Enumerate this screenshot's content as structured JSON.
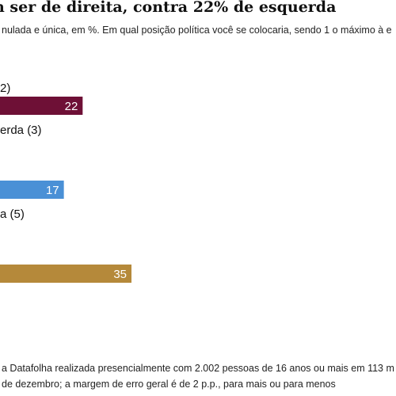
{
  "header": {
    "title": "n ser de direita, contra 22% de esquerda",
    "subtitle": "nulada e única, em %. Em qual posição política você se colocaria, sendo 1 o máximo à e"
  },
  "colors": {
    "esquerda": "#6e1036",
    "centro": "#4a90d6",
    "direita": "#b5893a"
  },
  "chart_data": {
    "type": "bar",
    "orientation": "horizontal",
    "groups": [
      {
        "label": "2)",
        "value": 22,
        "color": "#6e1036"
      },
      {
        "label": "erda (3)",
        "value": null,
        "color": null
      },
      {
        "label": "",
        "value": 17,
        "color": "#4a90d6"
      },
      {
        "label": "a (5)",
        "value": null,
        "color": null
      },
      {
        "label": "",
        "value": 35,
        "color": "#b5893a"
      }
    ]
  },
  "source": {
    "line1": "a Datafolha realizada presencialmente com 2.002 pessoas de 16 anos ou mais em 113 m",
    "line2": "de dezembro; a margem de erro geral é de 2 p.p., para mais ou para menos"
  }
}
